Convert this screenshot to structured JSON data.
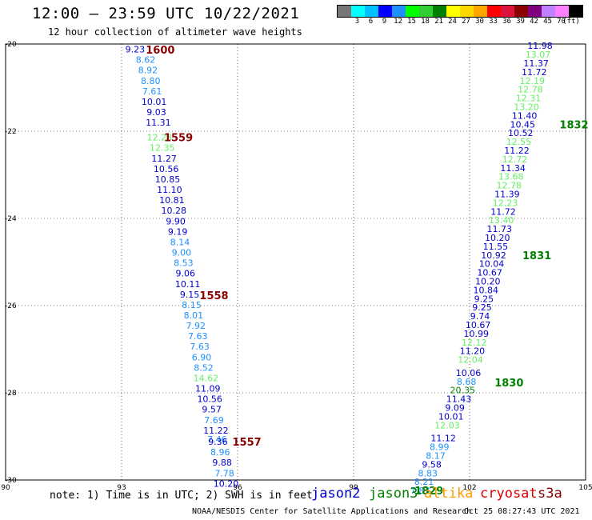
{
  "title": "12:00 — 23:59 UTC 10/22/2021",
  "subtitle": "12 hour collection of altimeter wave heights",
  "legend": {
    "unit": "(ft)",
    "colors": [
      "#777777",
      "#00ffff",
      "#00bfff",
      "#0000ff",
      "#1e90ff",
      "#00ff00",
      "#32cd32",
      "#008000",
      "#ffff00",
      "#ffd700",
      "#ffa500",
      "#ff0000",
      "#dc143c",
      "#8b0000",
      "#800080",
      "#c080ff",
      "#ff80ff",
      "#000000"
    ],
    "labels": [
      "3",
      "6",
      "9",
      "12",
      "15",
      "18",
      "21",
      "24",
      "27",
      "30",
      "33",
      "36",
      "39",
      "42",
      "45",
      "70"
    ]
  },
  "map": {
    "lon_ticks": [
      "90",
      "93",
      "96",
      "99",
      "102",
      "105"
    ],
    "lat_ticks": [
      "-20",
      "-22",
      "-24",
      "-26",
      "-28",
      "-30"
    ],
    "lon_range": [
      90,
      105
    ],
    "lat_range": [
      -30,
      -20
    ],
    "grid": "dotted"
  },
  "tracks": [
    {
      "track_points": [
        {
          "lon": 93.35,
          "lat": -20.12,
          "v": "9.23",
          "c": "#0000cc"
        },
        {
          "lon": 93.62,
          "lat": -20.36,
          "v": "8.62",
          "c": "#1e90ff"
        },
        {
          "lon": 93.68,
          "lat": -20.6,
          "v": "8.92",
          "c": "#1e90ff"
        },
        {
          "lon": 93.75,
          "lat": -20.84,
          "v": "8.80",
          "c": "#1e90ff"
        },
        {
          "lon": 93.79,
          "lat": -21.08,
          "v": "7.61",
          "c": "#1e90ff"
        },
        {
          "lon": 93.84,
          "lat": -21.32,
          "v": "10.01",
          "c": "#0000cc"
        },
        {
          "lon": 93.9,
          "lat": -21.56,
          "v": "9.03",
          "c": "#0000cc"
        },
        {
          "lon": 93.95,
          "lat": -21.8,
          "v": "11.31",
          "c": "#0000cc"
        },
        {
          "lon": 93.98,
          "lat": -22.14,
          "v": "12.28",
          "c": "#66ee66"
        },
        {
          "lon": 94.05,
          "lat": -22.38,
          "v": "12.35",
          "c": "#66ee66"
        },
        {
          "lon": 94.1,
          "lat": -22.62,
          "v": "11.27",
          "c": "#0000cc"
        },
        {
          "lon": 94.15,
          "lat": -22.86,
          "v": "10.56",
          "c": "#0000cc"
        },
        {
          "lon": 94.19,
          "lat": -23.1,
          "v": "10.85",
          "c": "#0000cc"
        },
        {
          "lon": 94.24,
          "lat": -23.34,
          "v": "11.10",
          "c": "#0000cc"
        },
        {
          "lon": 94.3,
          "lat": -23.58,
          "v": "10.81",
          "c": "#0000cc"
        },
        {
          "lon": 94.35,
          "lat": -23.82,
          "v": "10.28",
          "c": "#0000cc"
        },
        {
          "lon": 94.4,
          "lat": -24.06,
          "v": "9.90",
          "c": "#0000cc"
        },
        {
          "lon": 94.45,
          "lat": -24.3,
          "v": "9.19",
          "c": "#0000cc"
        },
        {
          "lon": 94.51,
          "lat": -24.54,
          "v": "8.14",
          "c": "#1e90ff"
        },
        {
          "lon": 94.55,
          "lat": -24.78,
          "v": "9.00",
          "c": "#1e90ff"
        },
        {
          "lon": 94.6,
          "lat": -25.02,
          "v": "8.53",
          "c": "#1e90ff"
        },
        {
          "lon": 94.65,
          "lat": -25.26,
          "v": "9.06",
          "c": "#0000cc"
        },
        {
          "lon": 94.71,
          "lat": -25.5,
          "v": "10.11",
          "c": "#0000cc"
        },
        {
          "lon": 94.76,
          "lat": -25.74,
          "v": "9.15",
          "c": "#0000cc"
        },
        {
          "lon": 94.81,
          "lat": -25.98,
          "v": "8.15",
          "c": "#1e90ff"
        },
        {
          "lon": 94.86,
          "lat": -26.22,
          "v": "8.01",
          "c": "#1e90ff"
        },
        {
          "lon": 94.92,
          "lat": -26.46,
          "v": "7.92",
          "c": "#1e90ff"
        },
        {
          "lon": 94.97,
          "lat": -26.7,
          "v": "7.63",
          "c": "#1e90ff"
        },
        {
          "lon": 95.02,
          "lat": -26.94,
          "v": "7.63",
          "c": "#1e90ff"
        },
        {
          "lon": 95.07,
          "lat": -27.18,
          "v": "6.90",
          "c": "#1e90ff"
        },
        {
          "lon": 95.12,
          "lat": -27.42,
          "v": "8.52",
          "c": "#1e90ff"
        },
        {
          "lon": 95.18,
          "lat": -27.66,
          "v": "14.62",
          "c": "#66ee66"
        },
        {
          "lon": 95.23,
          "lat": -27.9,
          "v": "11.09",
          "c": "#0000cc"
        },
        {
          "lon": 95.28,
          "lat": -28.14,
          "v": "10.56",
          "c": "#0000cc"
        },
        {
          "lon": 95.33,
          "lat": -28.38,
          "v": "9.57",
          "c": "#0000cc"
        },
        {
          "lon": 95.39,
          "lat": -28.62,
          "v": "7.69",
          "c": "#1e90ff"
        },
        {
          "lon": 95.44,
          "lat": -28.86,
          "v": "11.22",
          "c": "#0000cc"
        },
        {
          "lon": 95.47,
          "lat": -29.06,
          "v": "7.46",
          "c": "#1e90ff"
        },
        {
          "lon": 95.49,
          "lat": -29.12,
          "v": "9.36",
          "c": "#0000cc"
        },
        {
          "lon": 95.55,
          "lat": -29.36,
          "v": "8.96",
          "c": "#1e90ff"
        },
        {
          "lon": 95.6,
          "lat": -29.6,
          "v": "9.88",
          "c": "#0000cc"
        },
        {
          "lon": 95.66,
          "lat": -29.84,
          "v": "7.78",
          "c": "#1e90ff"
        },
        {
          "lon": 95.7,
          "lat": -30.08,
          "v": "10.20",
          "c": "#0000cc"
        }
      ],
      "time_labels": [
        {
          "lon": 94.0,
          "lat": -20.13,
          "t": "1600"
        },
        {
          "lon": 94.47,
          "lat": -22.14,
          "t": "1559"
        },
        {
          "lon": 95.39,
          "lat": -25.76,
          "t": "1558"
        },
        {
          "lon": 96.24,
          "lat": -29.12,
          "t": "1557"
        }
      ],
      "time_color": "#8b0000"
    },
    {
      "track_points": [
        {
          "lon": 103.82,
          "lat": -20.04,
          "v": "11.98",
          "c": "#0000cc"
        },
        {
          "lon": 103.77,
          "lat": -20.24,
          "v": "13.07",
          "c": "#66ee66"
        },
        {
          "lon": 103.72,
          "lat": -20.44,
          "v": "11.37",
          "c": "#0000cc"
        },
        {
          "lon": 103.67,
          "lat": -20.64,
          "v": "11.72",
          "c": "#0000cc"
        },
        {
          "lon": 103.62,
          "lat": -20.84,
          "v": "12.19",
          "c": "#66ee66"
        },
        {
          "lon": 103.57,
          "lat": -21.04,
          "v": "12.78",
          "c": "#66ee66"
        },
        {
          "lon": 103.52,
          "lat": -21.24,
          "v": "12.31",
          "c": "#66ee66"
        },
        {
          "lon": 103.47,
          "lat": -21.44,
          "v": "13.20",
          "c": "#66ee66"
        },
        {
          "lon": 103.42,
          "lat": -21.64,
          "v": "11.40",
          "c": "#0000cc"
        },
        {
          "lon": 103.37,
          "lat": -21.84,
          "v": "10.45",
          "c": "#0000cc"
        },
        {
          "lon": 103.32,
          "lat": -22.04,
          "v": "10.52",
          "c": "#0000cc"
        },
        {
          "lon": 103.27,
          "lat": -22.24,
          "v": "12.55",
          "c": "#66ee66"
        },
        {
          "lon": 103.22,
          "lat": -22.44,
          "v": "11.22",
          "c": "#0000cc"
        },
        {
          "lon": 103.17,
          "lat": -22.64,
          "v": "12.72",
          "c": "#66ee66"
        },
        {
          "lon": 103.12,
          "lat": -22.84,
          "v": "11.34",
          "c": "#0000cc"
        },
        {
          "lon": 103.07,
          "lat": -23.04,
          "v": "13.68",
          "c": "#66ee66"
        },
        {
          "lon": 103.02,
          "lat": -23.24,
          "v": "12.78",
          "c": "#66ee66"
        },
        {
          "lon": 102.97,
          "lat": -23.44,
          "v": "11.39",
          "c": "#0000cc"
        },
        {
          "lon": 102.92,
          "lat": -23.64,
          "v": "12.23",
          "c": "#66ee66"
        },
        {
          "lon": 102.87,
          "lat": -23.84,
          "v": "11.72",
          "c": "#0000cc"
        },
        {
          "lon": 102.82,
          "lat": -24.04,
          "v": "13.40",
          "c": "#66ee66"
        },
        {
          "lon": 102.77,
          "lat": -24.24,
          "v": "11.73",
          "c": "#0000cc"
        },
        {
          "lon": 102.72,
          "lat": -24.44,
          "v": "10.20",
          "c": "#0000cc"
        },
        {
          "lon": 102.67,
          "lat": -24.64,
          "v": "11.55",
          "c": "#0000cc"
        },
        {
          "lon": 102.62,
          "lat": -24.84,
          "v": "10.92",
          "c": "#0000cc"
        },
        {
          "lon": 102.57,
          "lat": -25.04,
          "v": "10.04",
          "c": "#0000cc"
        },
        {
          "lon": 102.52,
          "lat": -25.24,
          "v": "10.67",
          "c": "#0000cc"
        },
        {
          "lon": 102.47,
          "lat": -25.44,
          "v": "10.20",
          "c": "#0000cc"
        },
        {
          "lon": 102.42,
          "lat": -25.64,
          "v": "10.84",
          "c": "#0000cc"
        },
        {
          "lon": 102.37,
          "lat": -25.84,
          "v": "9.25",
          "c": "#0000cc"
        },
        {
          "lon": 102.32,
          "lat": -26.04,
          "v": "9.25",
          "c": "#0000cc"
        },
        {
          "lon": 102.27,
          "lat": -26.24,
          "v": "9.74",
          "c": "#0000cc"
        },
        {
          "lon": 102.22,
          "lat": -26.44,
          "v": "10.67",
          "c": "#0000cc"
        },
        {
          "lon": 102.17,
          "lat": -26.64,
          "v": "10.99",
          "c": "#0000cc"
        },
        {
          "lon": 102.12,
          "lat": -26.84,
          "v": "12.12",
          "c": "#66ee66"
        },
        {
          "lon": 102.07,
          "lat": -27.04,
          "v": "11.20",
          "c": "#0000cc"
        },
        {
          "lon": 102.02,
          "lat": -27.24,
          "v": "12.04",
          "c": "#66ee66"
        },
        {
          "lon": 101.97,
          "lat": -27.54,
          "v": "10.06",
          "c": "#0000cc"
        },
        {
          "lon": 101.92,
          "lat": -27.74,
          "v": "8.68",
          "c": "#1e90ff"
        },
        {
          "lon": 101.82,
          "lat": -27.94,
          "v": "20.35",
          "c": "#008000"
        },
        {
          "lon": 101.72,
          "lat": -28.14,
          "v": "11.43",
          "c": "#0000cc"
        },
        {
          "lon": 101.62,
          "lat": -28.34,
          "v": "9.09",
          "c": "#0000cc"
        },
        {
          "lon": 101.52,
          "lat": -28.54,
          "v": "10.01",
          "c": "#0000cc"
        },
        {
          "lon": 101.42,
          "lat": -28.74,
          "v": "12.03",
          "c": "#66ee66"
        },
        {
          "lon": 101.32,
          "lat": -29.04,
          "v": "11.12",
          "c": "#0000cc"
        },
        {
          "lon": 101.22,
          "lat": -29.24,
          "v": "8.99",
          "c": "#1e90ff"
        },
        {
          "lon": 101.12,
          "lat": -29.44,
          "v": "8.17",
          "c": "#1e90ff"
        },
        {
          "lon": 101.02,
          "lat": -29.64,
          "v": "9.58",
          "c": "#0000cc"
        },
        {
          "lon": 100.92,
          "lat": -29.84,
          "v": "8.83",
          "c": "#1e90ff"
        },
        {
          "lon": 100.82,
          "lat": -30.04,
          "v": "8.21",
          "c": "#1e90ff"
        },
        {
          "lon": 100.72,
          "lat": -30.24,
          "v": "7.83",
          "c": "#1e90ff"
        }
      ],
      "time_labels": [
        {
          "lon": 104.7,
          "lat": -21.84,
          "t": "1832"
        },
        {
          "lon": 103.74,
          "lat": -24.84,
          "t": "1831"
        },
        {
          "lon": 103.02,
          "lat": -27.76,
          "t": "1830"
        },
        {
          "lon": 100.95,
          "lat": -30.24,
          "t": "1829"
        }
      ],
      "time_color": "#008000"
    }
  ],
  "footer": {
    "note": "note: 1) Time is in UTC; 2) SWH is in feet",
    "satellites": [
      {
        "name": "jason2",
        "color": "#0000cc"
      },
      {
        "name": "jason3",
        "color": "#008000"
      },
      {
        "name": "altika",
        "color": "#ff9900"
      },
      {
        "name": "cryosat",
        "color": "#dd0000"
      },
      {
        "name": "s3a",
        "color": "#8b0000"
      }
    ],
    "credit": "NOAA/NESDIS Center for Satellite Applications and Research",
    "timestamp": "Oct 25 08:27:43 UTC 2021"
  }
}
